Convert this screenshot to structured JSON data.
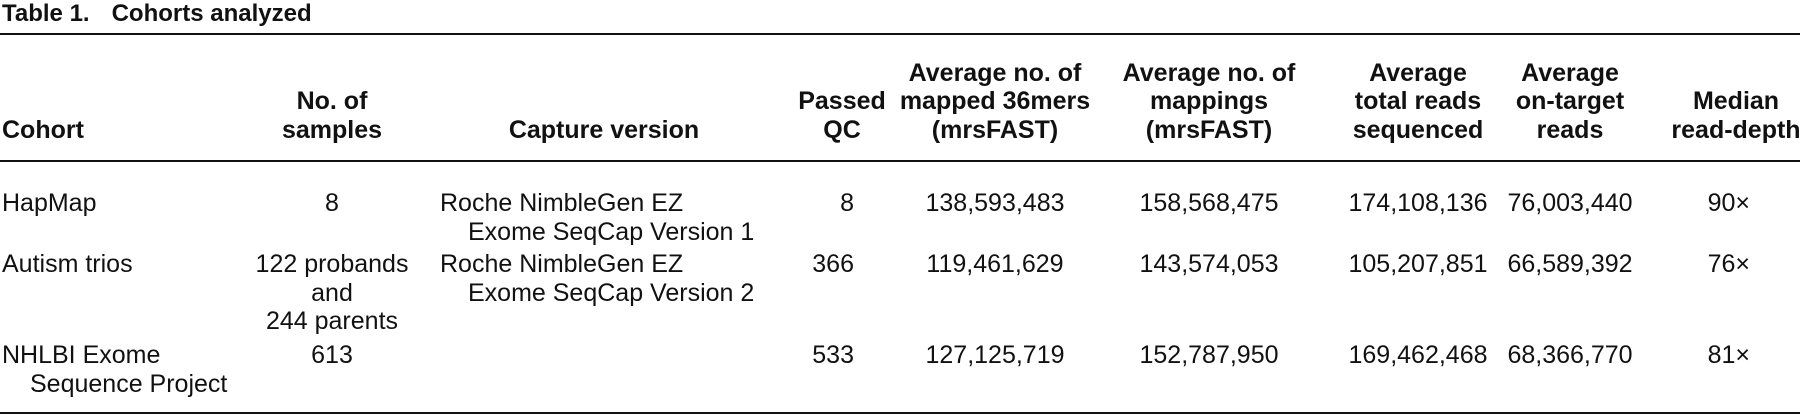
{
  "title": {
    "label": "Table 1.",
    "text": "Cohorts analyzed"
  },
  "table": {
    "columns": [
      [
        "Cohort"
      ],
      [
        "No. of",
        "samples"
      ],
      [
        "Capture version"
      ],
      [
        "Passed",
        "QC"
      ],
      [
        "Average no. of",
        "mapped 36mers",
        "(mrsFAST)"
      ],
      [
        "Average no. of",
        "mappings",
        "(mrsFAST)"
      ],
      [
        "Average",
        "total reads",
        "sequenced"
      ],
      [
        "Average",
        "on-target",
        "reads"
      ],
      [
        "Median",
        "read-depth"
      ]
    ],
    "rows": [
      [
        [
          "HapMap"
        ],
        [
          "8"
        ],
        [
          "Roche NimbleGen EZ",
          "Exome SeqCap Version 1"
        ],
        [
          "8"
        ],
        [
          "138,593,483"
        ],
        [
          "158,568,475"
        ],
        [
          "174,108,136"
        ],
        [
          "76,003,440"
        ],
        [
          "90×"
        ]
      ],
      [
        [
          "Autism trios"
        ],
        [
          "122 probands",
          "and",
          "244 parents"
        ],
        [
          "Roche NimbleGen EZ",
          "Exome SeqCap Version 2"
        ],
        [
          "366"
        ],
        [
          "119,461,629"
        ],
        [
          "143,574,053"
        ],
        [
          "105,207,851"
        ],
        [
          "66,589,392"
        ],
        [
          "76×"
        ]
      ],
      [
        [
          "NHLBI Exome",
          "Sequence Project"
        ],
        [
          "613"
        ],
        [],
        [
          "533"
        ],
        [
          "127,125,719"
        ],
        [
          "152,787,950"
        ],
        [
          "169,462,468"
        ],
        [
          "68,366,770"
        ],
        [
          "81×"
        ]
      ]
    ]
  }
}
